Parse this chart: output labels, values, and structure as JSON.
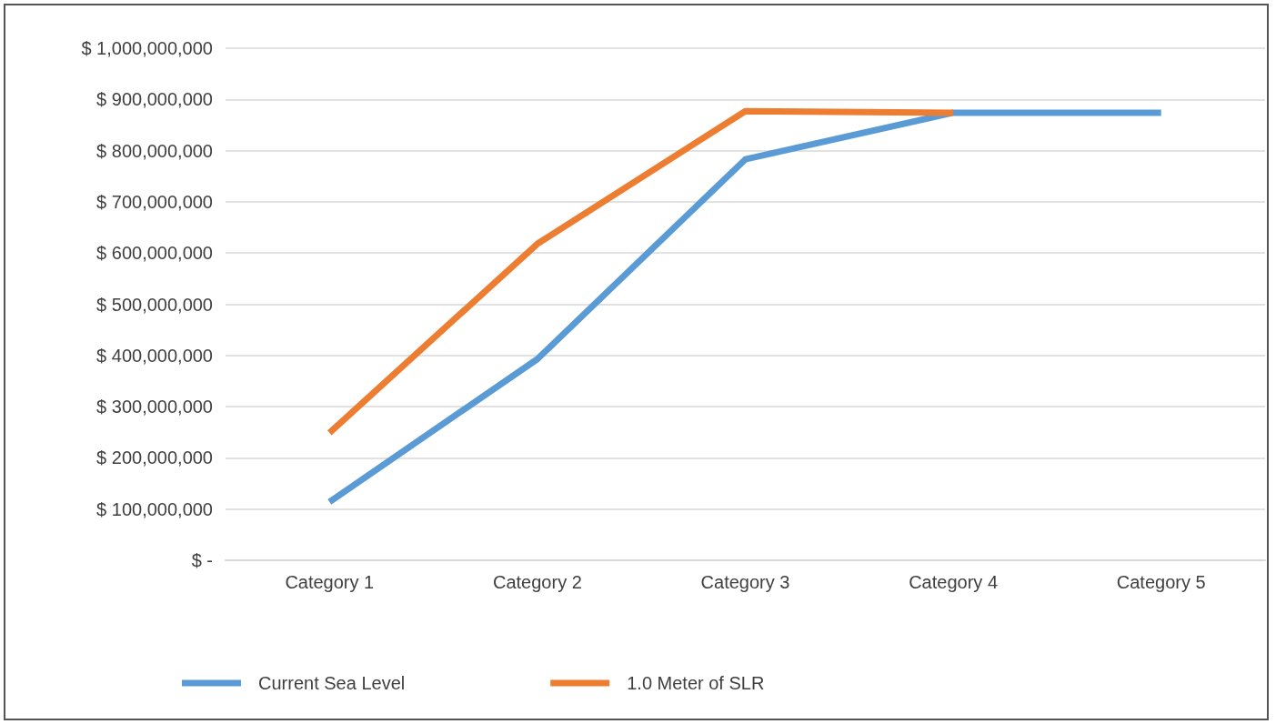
{
  "chart_data": {
    "type": "line",
    "categories": [
      "Category 1",
      "Category 2",
      "Category 3",
      "Category 4",
      "Category 5"
    ],
    "series": [
      {
        "name": "Current Sea Level",
        "color": "#5b9bd5",
        "values": [
          114000000,
          393000000,
          783000000,
          874000000,
          874000000
        ]
      },
      {
        "name": "1.0 Meter of SLR",
        "color": "#ed7d31",
        "values": [
          249000000,
          618000000,
          877000000,
          874000000,
          null
        ]
      }
    ],
    "ylim": [
      0,
      1000000000
    ],
    "yticks": [
      {
        "value": 0,
        "label": "$ -"
      },
      {
        "value": 100000000,
        "label": "$ 100,000,000"
      },
      {
        "value": 200000000,
        "label": "$ 200,000,000"
      },
      {
        "value": 300000000,
        "label": "$ 300,000,000"
      },
      {
        "value": 400000000,
        "label": "$ 400,000,000"
      },
      {
        "value": 500000000,
        "label": "$ 500,000,000"
      },
      {
        "value": 600000000,
        "label": "$ 600,000,000"
      },
      {
        "value": 700000000,
        "label": "$ 700,000,000"
      },
      {
        "value": 800000000,
        "label": "$ 800,000,000"
      },
      {
        "value": 900000000,
        "label": "$ 900,000,000"
      },
      {
        "value": 1000000000,
        "label": "$ 1,000,000,000"
      }
    ],
    "grid": "y",
    "legend": "bottom",
    "marker": "none",
    "line_style": "solid"
  }
}
